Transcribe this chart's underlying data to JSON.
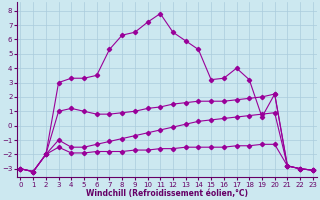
{
  "xlabel": "Windchill (Refroidissement éolien,°C)",
  "bg_color": "#cce8f0",
  "line_color": "#990099",
  "grid_color": "#aaccdd",
  "xlim": [
    -0.3,
    23.3
  ],
  "ylim": [
    -3.6,
    8.6
  ],
  "yticks": [
    -3,
    -2,
    -1,
    0,
    1,
    2,
    3,
    4,
    5,
    6,
    7,
    8
  ],
  "xticks": [
    0,
    1,
    2,
    3,
    4,
    5,
    6,
    7,
    8,
    9,
    10,
    11,
    12,
    13,
    14,
    15,
    16,
    17,
    18,
    19,
    20,
    21,
    22,
    23
  ],
  "curve1_x": [
    0,
    1,
    2,
    3,
    4,
    5,
    6,
    7,
    8,
    9,
    10,
    11,
    12,
    13,
    14,
    15,
    16,
    17,
    18,
    19,
    20,
    21,
    22,
    23
  ],
  "curve1_y": [
    -3.0,
    -3.2,
    -2.0,
    3.0,
    3.3,
    3.3,
    3.5,
    5.3,
    6.3,
    6.5,
    7.2,
    7.8,
    6.5,
    5.9,
    5.3,
    3.2,
    3.3,
    4.0,
    3.2,
    0.6,
    2.2,
    -2.8,
    -3.0,
    -3.1
  ],
  "curve2_x": [
    0,
    1,
    2,
    3,
    4,
    5,
    6,
    7,
    8,
    9,
    10,
    11,
    12,
    13,
    14,
    15,
    16,
    17,
    18,
    19,
    20,
    21,
    22,
    23
  ],
  "curve2_y": [
    -3.0,
    -3.2,
    -2.0,
    1.0,
    1.2,
    1.0,
    0.8,
    0.8,
    0.9,
    1.0,
    1.2,
    1.3,
    1.5,
    1.6,
    1.7,
    1.7,
    1.7,
    1.8,
    1.9,
    2.0,
    2.2,
    -2.8,
    -3.0,
    -3.1
  ],
  "curve3_x": [
    0,
    1,
    2,
    3,
    4,
    5,
    6,
    7,
    8,
    9,
    10,
    11,
    12,
    13,
    14,
    15,
    16,
    17,
    18,
    19,
    20,
    21,
    22,
    23
  ],
  "curve3_y": [
    -3.0,
    -3.2,
    -2.0,
    -1.0,
    -1.5,
    -1.5,
    -1.3,
    -1.1,
    -0.9,
    -0.7,
    -0.5,
    -0.3,
    -0.1,
    0.1,
    0.3,
    0.4,
    0.5,
    0.6,
    0.7,
    0.8,
    0.9,
    -2.8,
    -3.0,
    -3.1
  ],
  "curve4_x": [
    0,
    1,
    2,
    3,
    4,
    5,
    6,
    7,
    8,
    9,
    10,
    11,
    12,
    13,
    14,
    15,
    16,
    17,
    18,
    19,
    20,
    21,
    22,
    23
  ],
  "curve4_y": [
    -3.0,
    -3.2,
    -2.0,
    -1.5,
    -1.9,
    -1.9,
    -1.8,
    -1.8,
    -1.8,
    -1.7,
    -1.7,
    -1.6,
    -1.6,
    -1.5,
    -1.5,
    -1.5,
    -1.5,
    -1.4,
    -1.4,
    -1.3,
    -1.3,
    -2.8,
    -3.0,
    -3.1
  ]
}
